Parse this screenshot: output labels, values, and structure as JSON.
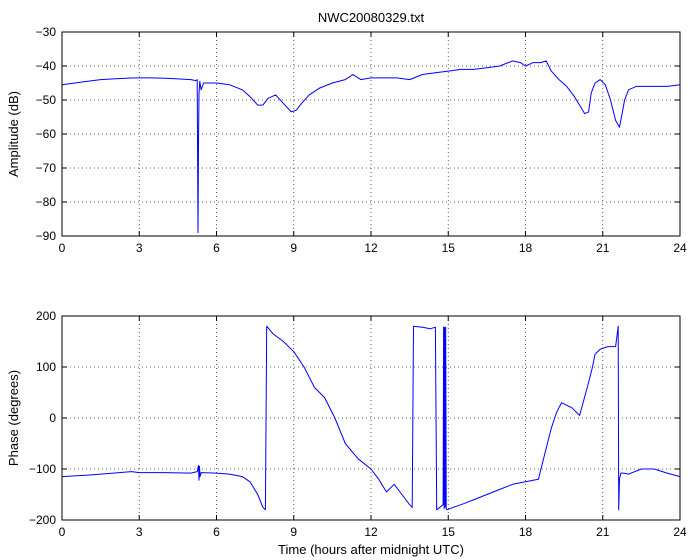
{
  "chart_data": [
    {
      "type": "line",
      "title": "NWC20080329.txt",
      "xlabel": "",
      "ylabel": "Amplitude (dB)",
      "xlim": [
        0,
        24
      ],
      "ylim": [
        -90,
        -30
      ],
      "xticks": [
        0,
        3,
        6,
        9,
        12,
        15,
        18,
        21,
        24
      ],
      "yticks": [
        -90,
        -80,
        -70,
        -60,
        -50,
        -40,
        -30
      ],
      "grid": true,
      "series": [
        {
          "color": "#0000ff",
          "x": [
            0,
            0.5,
            1,
            1.5,
            2,
            2.5,
            3,
            3.5,
            4,
            4.5,
            5,
            5.2,
            5.25,
            5.28,
            5.3,
            5.32,
            5.35,
            5.4,
            5.5,
            6,
            6.5,
            7,
            7.3,
            7.6,
            7.8,
            8,
            8.3,
            8.6,
            8.9,
            9.1,
            9.3,
            9.6,
            10,
            10.5,
            11,
            11.3,
            11.6,
            12,
            12.5,
            13,
            13.5,
            14,
            14.5,
            15,
            15.5,
            16,
            16.5,
            17,
            17.5,
            17.8,
            18,
            18.3,
            18.6,
            18.8,
            19,
            19.3,
            19.6,
            19.9,
            20.1,
            20.3,
            20.45,
            20.55,
            20.7,
            20.9,
            21.1,
            21.3,
            21.5,
            21.65,
            21.75,
            21.85,
            22,
            22.3,
            22.6,
            23,
            23.5,
            24
          ],
          "y": [
            -45.5,
            -45,
            -44.5,
            -44,
            -43.8,
            -43.6,
            -43.5,
            -43.5,
            -43.6,
            -43.8,
            -44,
            -44.3,
            -44,
            -89,
            -63,
            -48,
            -44.5,
            -47,
            -45,
            -45,
            -45.5,
            -47,
            -49,
            -51.5,
            -51.5,
            -49.5,
            -48.5,
            -51,
            -53.5,
            -53,
            -51,
            -48.5,
            -46.5,
            -45,
            -44,
            -42.5,
            -44,
            -43.5,
            -43.5,
            -43.5,
            -44,
            -42.5,
            -42,
            -41.5,
            -41,
            -41,
            -40.5,
            -40,
            -38.5,
            -39,
            -40,
            -39,
            -39,
            -38.5,
            -41.5,
            -44,
            -46,
            -49,
            -51.5,
            -54,
            -53.5,
            -48,
            -45,
            -44,
            -45.5,
            -50,
            -56,
            -58,
            -54,
            -50,
            -47,
            -46,
            -46,
            -46,
            -46,
            -45.5
          ]
        }
      ]
    },
    {
      "type": "line",
      "title": "",
      "xlabel": "Time (hours after midnight UTC)",
      "ylabel": "Phase (degrees)",
      "xlim": [
        0,
        24
      ],
      "ylim": [
        -200,
        200
      ],
      "xticks": [
        0,
        3,
        6,
        9,
        12,
        15,
        18,
        21,
        24
      ],
      "yticks": [
        -200,
        -100,
        0,
        100,
        200
      ],
      "grid": true,
      "series": [
        {
          "color": "#0000ff",
          "x": [
            0,
            1,
            2,
            2.7,
            3,
            4,
            5,
            5.25,
            5.3,
            5.32,
            5.34,
            5.36,
            5.4,
            6,
            6.5,
            7,
            7.3,
            7.6,
            7.8,
            7.9,
            7.95,
            8.2,
            8.6,
            9,
            9.4,
            9.8,
            10.2,
            10.6,
            11,
            11.5,
            12,
            12.3,
            12.6,
            12.9,
            13.2,
            13.5,
            13.6,
            13.65,
            14,
            14.3,
            14.5,
            14.55,
            14.8,
            14.82,
            14.84,
            14.86,
            14.88,
            14.9,
            14.92,
            14.95,
            15.2,
            15.6,
            16,
            16.5,
            17,
            17.5,
            18,
            18.5,
            18.8,
            19,
            19.2,
            19.4,
            19.8,
            20.1,
            20.4,
            20.6,
            20.7,
            20.9,
            21.2,
            21.5,
            21.6,
            21.62,
            21.65,
            21.7,
            21.8,
            22,
            22.5,
            23,
            23.5,
            24
          ],
          "y": [
            -115,
            -112,
            -108,
            -105,
            -107,
            -107,
            -108,
            -105,
            -93,
            -122,
            -95,
            -115,
            -107,
            -108,
            -110,
            -115,
            -125,
            -150,
            -175,
            -180,
            180,
            165,
            150,
            130,
            100,
            60,
            40,
            0,
            -50,
            -80,
            -100,
            -120,
            -145,
            -130,
            -150,
            -170,
            -175,
            180,
            178,
            175,
            178,
            -180,
            -170,
            178,
            -178,
            178,
            -175,
            178,
            -178,
            -180,
            -175,
            -168,
            -160,
            -150,
            -140,
            -130,
            -125,
            -120,
            -60,
            -20,
            10,
            30,
            20,
            5,
            60,
            100,
            125,
            135,
            140,
            140,
            180,
            -180,
            -120,
            -108,
            -108,
            -110,
            -100,
            -100,
            -108,
            -115
          ]
        }
      ]
    }
  ]
}
